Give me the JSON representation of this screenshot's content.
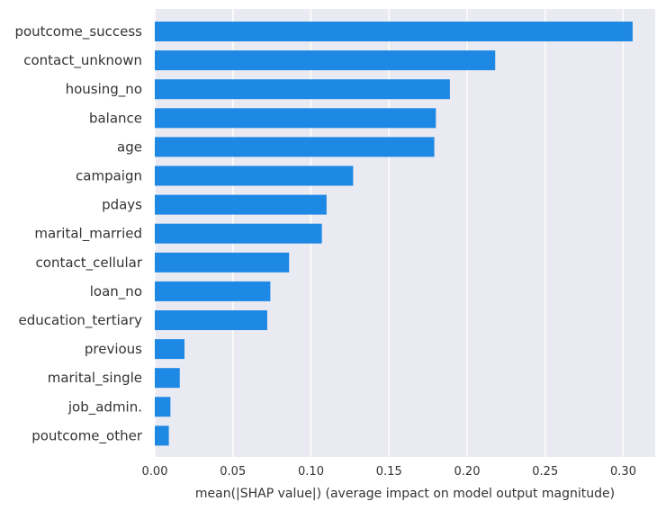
{
  "chart_data": {
    "type": "bar",
    "orientation": "horizontal",
    "categories": [
      "poutcome_success",
      "contact_unknown",
      "housing_no",
      "balance",
      "age",
      "campaign",
      "pdays",
      "marital_married",
      "contact_cellular",
      "loan_no",
      "education_tertiary",
      "previous",
      "marital_single",
      "job_admin.",
      "poutcome_other"
    ],
    "values": [
      0.306,
      0.218,
      0.189,
      0.18,
      0.179,
      0.127,
      0.11,
      0.107,
      0.086,
      0.074,
      0.072,
      0.019,
      0.016,
      0.01,
      0.009
    ],
    "xlabel": "mean(|SHAP value|) (average impact on model output magnitude)",
    "ylabel": "",
    "title": "",
    "xlim": [
      0.0,
      0.32
    ],
    "xticks": [
      "0.00",
      "0.05",
      "0.10",
      "0.15",
      "0.20",
      "0.25",
      "0.30"
    ],
    "bar_color": "#1e88e5",
    "background_color": "#eaeaf2",
    "grid": true,
    "legend": "none"
  }
}
